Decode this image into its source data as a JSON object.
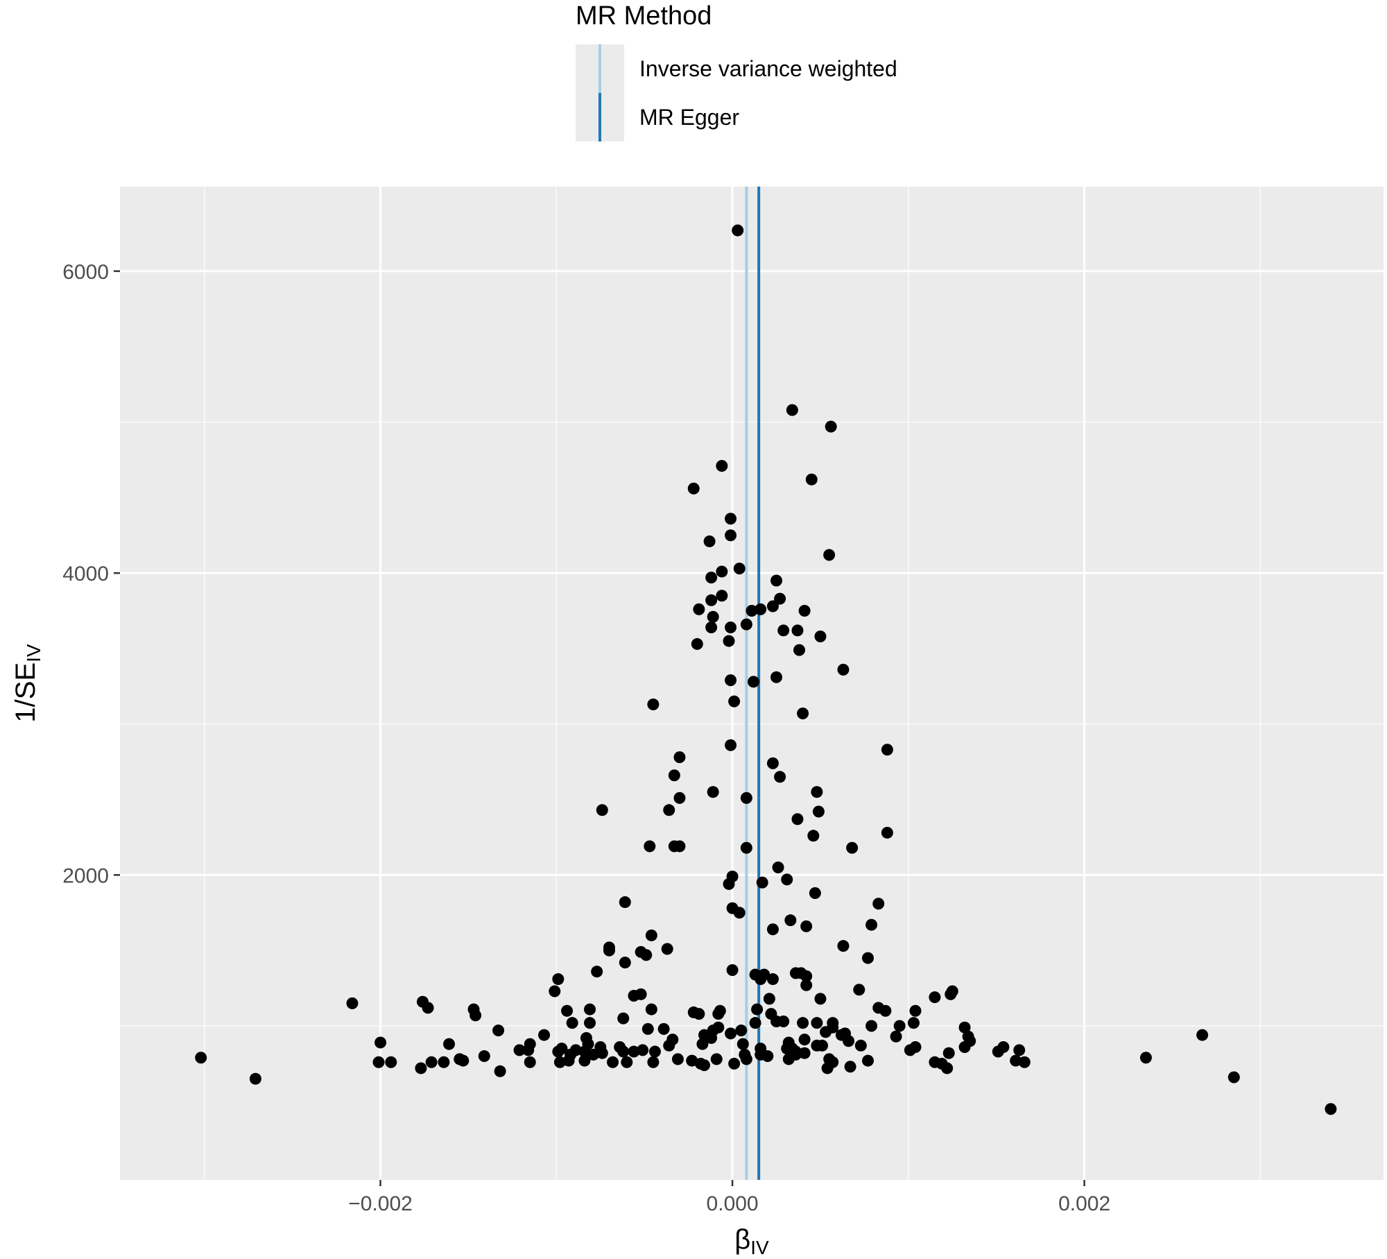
{
  "chart_data": {
    "type": "scatter",
    "title": "",
    "xlabel": "β",
    "xlabel_sub": "IV",
    "ylabel": "1/SE",
    "ylabel_sub": "IV",
    "xlim": [
      -0.00348,
      0.0037
    ],
    "ylim": [
      -20,
      6560
    ],
    "x_ticks": [
      -0.002,
      0.0,
      0.002
    ],
    "x_tick_labels": [
      "−0.002",
      "0.000",
      "0.002"
    ],
    "x_minor_ticks": [
      -0.003,
      -0.001,
      0.001,
      0.003
    ],
    "y_ticks": [
      2000,
      4000,
      6000
    ],
    "y_tick_labels": [
      "2000",
      "4000",
      "6000"
    ],
    "y_minor_ticks": [
      1000,
      3000,
      5000
    ],
    "grid": true,
    "panel_background": "#ebebeb",
    "point_color": "#000000",
    "legend": {
      "title": "MR Method",
      "position": "top",
      "entries": [
        {
          "label": "Inverse variance weighted",
          "color": "#a6cee3"
        },
        {
          "label": "MR Egger",
          "color": "#1f78b4"
        }
      ]
    },
    "vlines": [
      {
        "method": "Inverse variance weighted",
        "x": 8e-05,
        "color": "#a6cee3"
      },
      {
        "method": "MR Egger",
        "x": 0.00015,
        "color": "#1f78b4"
      }
    ],
    "points": [
      [
        3e-05,
        6270
      ],
      [
        0.00034,
        5080
      ],
      [
        0.00056,
        4970
      ],
      [
        -6e-05,
        4710
      ],
      [
        -0.00022,
        4560
      ],
      [
        0.00045,
        4620
      ],
      [
        -1e-05,
        4360
      ],
      [
        -1e-05,
        4250
      ],
      [
        -0.00013,
        4210
      ],
      [
        0.00055,
        4120
      ],
      [
        4e-05,
        4030
      ],
      [
        -6e-05,
        4010
      ],
      [
        -0.00012,
        3970
      ],
      [
        0.00025,
        3950
      ],
      [
        -6e-05,
        3850
      ],
      [
        -0.00012,
        3820
      ],
      [
        0.00027,
        3830
      ],
      [
        0.00023,
        3780
      ],
      [
        -0.00019,
        3760
      ],
      [
        0.00016,
        3760
      ],
      [
        0.00011,
        3750
      ],
      [
        0.00041,
        3750
      ],
      [
        -0.00011,
        3710
      ],
      [
        -0.00012,
        3640
      ],
      [
        -1e-05,
        3640
      ],
      [
        8e-05,
        3660
      ],
      [
        0.00029,
        3620
      ],
      [
        0.00037,
        3620
      ],
      [
        0.0005,
        3580
      ],
      [
        -2e-05,
        3550
      ],
      [
        -0.0002,
        3530
      ],
      [
        0.00038,
        3490
      ],
      [
        0.00063,
        3360
      ],
      [
        -1e-05,
        3290
      ],
      [
        0.00012,
        3280
      ],
      [
        0.00025,
        3310
      ],
      [
        -0.00045,
        3130
      ],
      [
        1e-05,
        3150
      ],
      [
        0.0004,
        3070
      ],
      [
        -1e-05,
        2860
      ],
      [
        0.00088,
        2830
      ],
      [
        -0.0003,
        2780
      ],
      [
        0.00023,
        2740
      ],
      [
        -0.00033,
        2660
      ],
      [
        0.00027,
        2650
      ],
      [
        -0.00011,
        2550
      ],
      [
        0.00048,
        2550
      ],
      [
        -0.0003,
        2510
      ],
      [
        8e-05,
        2510
      ],
      [
        -0.00074,
        2430
      ],
      [
        -0.00036,
        2430
      ],
      [
        0.00049,
        2420
      ],
      [
        0.00037,
        2370
      ],
      [
        0.00046,
        2260
      ],
      [
        0.00088,
        2280
      ],
      [
        -0.00047,
        2190
      ],
      [
        -0.00033,
        2190
      ],
      [
        -0.0003,
        2190
      ],
      [
        8e-05,
        2180
      ],
      [
        0.00068,
        2180
      ],
      [
        0.00026,
        2050
      ],
      [
        0.0,
        1990
      ],
      [
        0.00031,
        1970
      ],
      [
        0.00017,
        1950
      ],
      [
        -2e-05,
        1940
      ],
      [
        0.00047,
        1880
      ],
      [
        -0.00061,
        1820
      ],
      [
        0.00083,
        1810
      ],
      [
        0.0,
        1780
      ],
      [
        4e-05,
        1750
      ],
      [
        0.00033,
        1700
      ],
      [
        0.00079,
        1670
      ],
      [
        0.00023,
        1640
      ],
      [
        0.00042,
        1660
      ],
      [
        -0.00046,
        1600
      ],
      [
        -0.0007,
        1520
      ],
      [
        -0.0007,
        1500
      ],
      [
        -0.00052,
        1490
      ],
      [
        -0.00037,
        1510
      ],
      [
        0.00063,
        1530
      ],
      [
        -0.00049,
        1470
      ],
      [
        0.00077,
        1450
      ],
      [
        -0.00061,
        1420
      ],
      [
        0.0,
        1370
      ],
      [
        -0.00077,
        1360
      ],
      [
        0.00013,
        1340
      ],
      [
        0.00018,
        1340
      ],
      [
        0.00036,
        1350
      ],
      [
        0.00039,
        1350
      ],
      [
        0.00042,
        1330
      ],
      [
        0.00016,
        1310
      ],
      [
        0.00023,
        1310
      ],
      [
        -0.00099,
        1310
      ],
      [
        0.00042,
        1270
      ],
      [
        0.00072,
        1240
      ],
      [
        -0.00101,
        1230
      ],
      [
        0.00125,
        1230
      ],
      [
        -0.00052,
        1210
      ],
      [
        -0.00056,
        1200
      ],
      [
        0.00124,
        1210
      ],
      [
        0.00115,
        1190
      ],
      [
        0.0005,
        1180
      ],
      [
        0.00021,
        1180
      ],
      [
        -0.00216,
        1150
      ],
      [
        -0.00176,
        1160
      ],
      [
        0.00083,
        1120
      ],
      [
        -0.00173,
        1120
      ],
      [
        -0.00147,
        1110
      ],
      [
        -0.00046,
        1110
      ],
      [
        -0.00094,
        1100
      ],
      [
        -0.00081,
        1110
      ],
      [
        0.00014,
        1110
      ],
      [
        0.00087,
        1100
      ],
      [
        0.00104,
        1100
      ],
      [
        -7e-05,
        1100
      ],
      [
        -0.00022,
        1090
      ],
      [
        -0.00019,
        1080
      ],
      [
        -8e-05,
        1080
      ],
      [
        0.00022,
        1080
      ],
      [
        -0.00146,
        1070
      ],
      [
        -0.00062,
        1050
      ],
      [
        0.00025,
        1030
      ],
      [
        0.00029,
        1030
      ],
      [
        0.0004,
        1020
      ],
      [
        0.00048,
        1020
      ],
      [
        0.00057,
        1020
      ],
      [
        0.00103,
        1020
      ],
      [
        0.00013,
        1020
      ],
      [
        -0.00091,
        1020
      ],
      [
        -0.00081,
        1020
      ],
      [
        0.00079,
        1000
      ],
      [
        0.00095,
        1000
      ],
      [
        -8e-05,
        990
      ],
      [
        0.00057,
        990
      ],
      [
        0.00132,
        990
      ],
      [
        -0.00048,
        980
      ],
      [
        -0.00039,
        980
      ],
      [
        -0.00133,
        970
      ],
      [
        5e-05,
        970
      ],
      [
        -0.00011,
        970
      ],
      [
        0.00053,
        960
      ],
      [
        0.00064,
        950
      ],
      [
        -1e-05,
        950
      ],
      [
        -0.00016,
        940
      ],
      [
        -0.00107,
        940
      ],
      [
        0.00062,
        940
      ],
      [
        0.00093,
        930
      ],
      [
        0.00134,
        930
      ],
      [
        -0.00083,
        920
      ],
      [
        -0.00012,
        920
      ],
      [
        -0.00034,
        910
      ],
      [
        0.00041,
        910
      ],
      [
        0.00066,
        900
      ],
      [
        0.00135,
        900
      ],
      [
        -0.002,
        890
      ],
      [
        0.00032,
        890
      ],
      [
        -0.00082,
        880
      ],
      [
        -0.00017,
        880
      ],
      [
        -0.00161,
        880
      ],
      [
        -0.00115,
        880
      ],
      [
        6e-05,
        880
      ],
      [
        -0.00036,
        870
      ],
      [
        0.00048,
        870
      ],
      [
        0.00051,
        870
      ],
      [
        0.00073,
        870
      ],
      [
        0.00104,
        860
      ],
      [
        0.00132,
        860
      ],
      [
        0.00154,
        860
      ],
      [
        -0.00075,
        860
      ],
      [
        -0.00064,
        860
      ],
      [
        -0.00097,
        850
      ],
      [
        0.00016,
        850
      ],
      [
        0.00034,
        850
      ],
      [
        0.00031,
        850
      ],
      [
        -0.00116,
        840
      ],
      [
        -0.00051,
        840
      ],
      [
        0.00101,
        840
      ],
      [
        0.00163,
        840
      ],
      [
        -0.00121,
        840
      ],
      [
        -0.00089,
        840
      ],
      [
        -0.00044,
        830
      ],
      [
        -0.00099,
        830
      ],
      [
        0.00036,
        830
      ],
      [
        -0.00074,
        820
      ],
      [
        -0.00062,
        830
      ],
      [
        -0.00056,
        830
      ],
      [
        -0.00084,
        830
      ],
      [
        -0.00092,
        810
      ],
      [
        0.00123,
        820
      ],
      [
        0.00151,
        830
      ],
      [
        0.00041,
        820
      ],
      [
        0.00016,
        810
      ],
      [
        0.00036,
        810
      ],
      [
        0.0002,
        800
      ],
      [
        7e-05,
        810
      ],
      [
        -0.00141,
        800
      ],
      [
        0.00235,
        790
      ],
      [
        -0.00079,
        810
      ],
      [
        -0.00302,
        790
      ],
      [
        -9e-05,
        780
      ],
      [
        -0.00031,
        780
      ],
      [
        -0.00155,
        780
      ],
      [
        0.00055,
        780
      ],
      [
        -0.00153,
        770
      ],
      [
        -0.00023,
        770
      ],
      [
        -0.00093,
        770
      ],
      [
        -0.00164,
        760
      ],
      [
        -0.00171,
        760
      ],
      [
        -0.00084,
        770
      ],
      [
        0.00057,
        760
      ],
      [
        8e-05,
        780
      ],
      [
        0.00032,
        780
      ],
      [
        0.00077,
        770
      ],
      [
        0.00161,
        770
      ],
      [
        -0.00201,
        760
      ],
      [
        -0.00194,
        760
      ],
      [
        -0.00068,
        760
      ],
      [
        -0.00115,
        760
      ],
      [
        -0.00045,
        760
      ],
      [
        0.00166,
        760
      ],
      [
        0.00115,
        760
      ],
      [
        0.00119,
        750
      ],
      [
        -0.00018,
        750
      ],
      [
        1e-05,
        750
      ],
      [
        -0.00016,
        740
      ],
      [
        -0.0006,
        760
      ],
      [
        -0.00098,
        760
      ],
      [
        0.00067,
        730
      ],
      [
        0.00122,
        720
      ],
      [
        0.00054,
        720
      ],
      [
        -0.00177,
        720
      ],
      [
        -0.00132,
        700
      ],
      [
        0.00285,
        660
      ],
      [
        -0.00271,
        650
      ],
      [
        0.0034,
        450
      ],
      [
        0.00267,
        940
      ]
    ]
  }
}
